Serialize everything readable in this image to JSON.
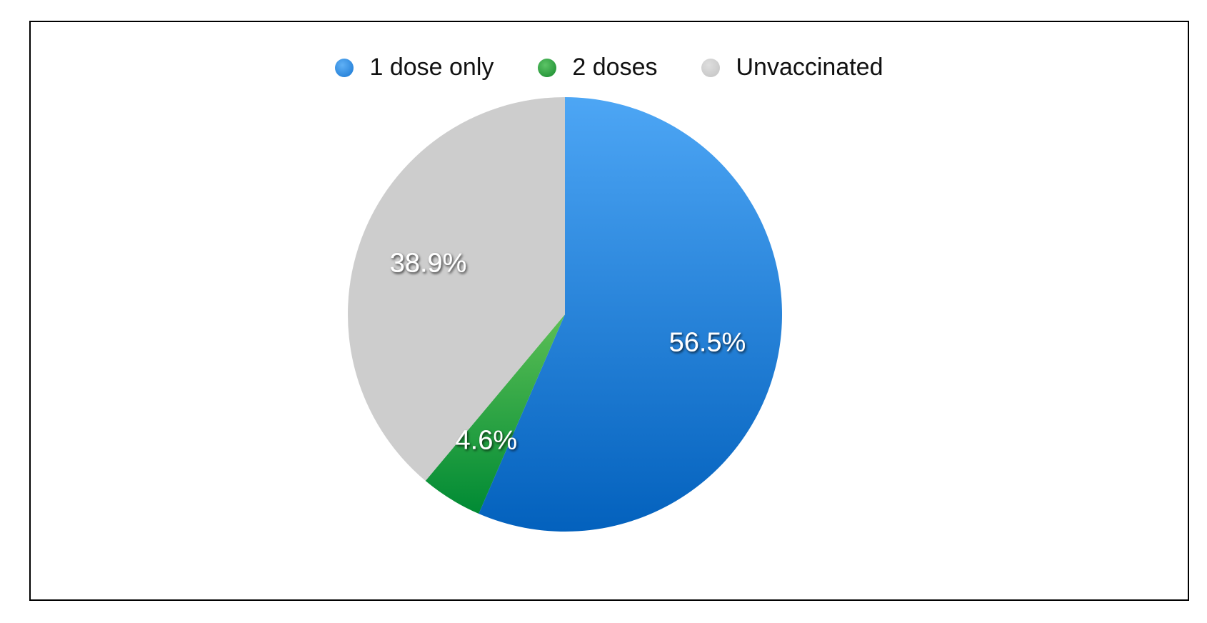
{
  "chart_data": {
    "type": "pie",
    "categories": [
      "1 dose only",
      "2 doses",
      "Unvaccinated"
    ],
    "values": [
      56.5,
      4.6,
      38.9
    ],
    "value_labels": [
      "56.5%",
      "4.6%",
      "38.9%"
    ],
    "unit": "%",
    "colors": [
      "#1f7fd8",
      "#2a9d3a",
      "#cccccc"
    ],
    "legend_placement": "top",
    "start_angle": "12 o'clock",
    "direction": "clockwise"
  },
  "legend": {
    "items": [
      {
        "label": "1 dose only",
        "color": "#2b8fe6"
      },
      {
        "label": "2 doses",
        "color": "#2aa33e"
      },
      {
        "label": "Unvaccinated",
        "color": "#cccccc"
      }
    ]
  }
}
